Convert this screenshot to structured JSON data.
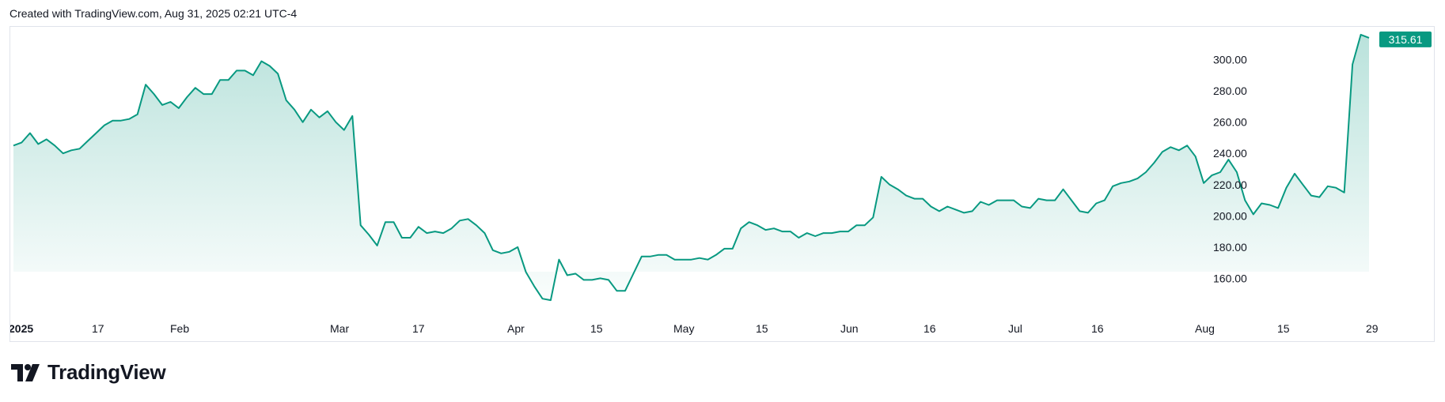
{
  "header": {
    "text": "Created with TradingView.com, Aug 31, 2025 02:21 UTC-4"
  },
  "brand": {
    "name": "TradingView",
    "icon": "tradingview-logo-icon"
  },
  "colors": {
    "line": "#089981",
    "price_badge": "#089981",
    "price_badge_text": "#ffffff",
    "axis_text": "#131722",
    "border": "#e0e3eb"
  },
  "chart_data": {
    "type": "area",
    "ylim": [
      140,
      320
    ],
    "y_ticks": [
      "160.00",
      "180.00",
      "200.00",
      "220.00",
      "240.00",
      "260.00",
      "280.00",
      "300.00"
    ],
    "x_ticks": [
      {
        "label": "2025",
        "bold": true
      },
      {
        "label": "17",
        "bold": false
      },
      {
        "label": "Feb",
        "bold": false
      },
      {
        "label": "Mar",
        "bold": false
      },
      {
        "label": "17",
        "bold": false
      },
      {
        "label": "Apr",
        "bold": false
      },
      {
        "label": "15",
        "bold": false
      },
      {
        "label": "May",
        "bold": false
      },
      {
        "label": "15",
        "bold": false
      },
      {
        "label": "Jun",
        "bold": false
      },
      {
        "label": "16",
        "bold": false
      },
      {
        "label": "Jul",
        "bold": false
      },
      {
        "label": "16",
        "bold": false
      },
      {
        "label": "Aug",
        "bold": false
      },
      {
        "label": "15",
        "bold": false
      },
      {
        "label": "29",
        "bold": false
      }
    ],
    "last_price": "315.61",
    "values": [
      245,
      247,
      253,
      246,
      249,
      245,
      240,
      242,
      243,
      248,
      253,
      258,
      261,
      261,
      262,
      265,
      284,
      278,
      271,
      273,
      269,
      276,
      282,
      278,
      278,
      287,
      287,
      293,
      293,
      290,
      299,
      296,
      291,
      274,
      268,
      260,
      268,
      263,
      267,
      260,
      255,
      264,
      194,
      188,
      181,
      196,
      196,
      186,
      186,
      193,
      189,
      190,
      189,
      192,
      197,
      198,
      194,
      189,
      178,
      176,
      177,
      180,
      164,
      155,
      147,
      146,
      172,
      162,
      163,
      159,
      159,
      160,
      159,
      152,
      152,
      163,
      174,
      174,
      175,
      175,
      172,
      172,
      172,
      173,
      172,
      175,
      179,
      179,
      192,
      196,
      194,
      191,
      192,
      190,
      190,
      186,
      189,
      187,
      189,
      189,
      190,
      190,
      194,
      194,
      199,
      225,
      220,
      217,
      213,
      211,
      211,
      206,
      203,
      206,
      204,
      202,
      203,
      209,
      207,
      210,
      210,
      210,
      206,
      205,
      211,
      210,
      210,
      217,
      210,
      203,
      202,
      208,
      210,
      219,
      221,
      222,
      224,
      228,
      234,
      241,
      244,
      242,
      245,
      238,
      221,
      226,
      228,
      236,
      228,
      210,
      201,
      208,
      207,
      205,
      218,
      227,
      220,
      213,
      212,
      219,
      218,
      215,
      297,
      316,
      314
    ]
  }
}
